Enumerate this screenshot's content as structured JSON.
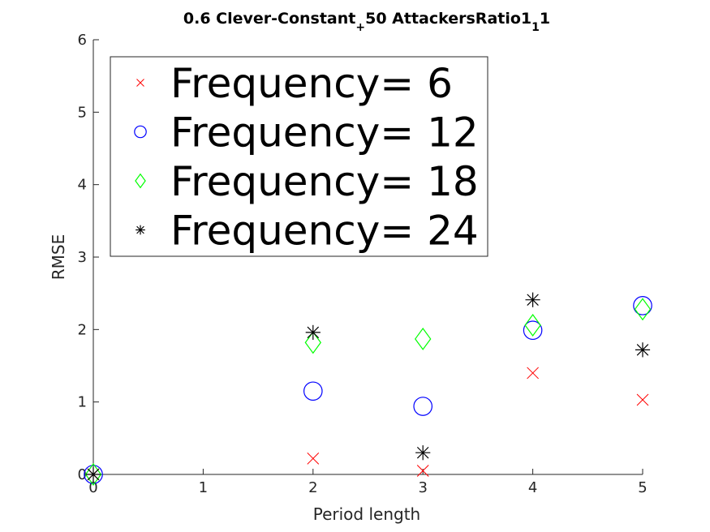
{
  "chart_data": {
    "type": "scatter",
    "title": {
      "part1": "0.6 Clever-Constant",
      "sub1": "+",
      "part2": "50 AttackersRatio1",
      "sub2": "1",
      "part3": "1"
    },
    "xlabel": "Period length",
    "ylabel": "RMSE",
    "xlim": [
      0,
      5
    ],
    "ylim": [
      0,
      6
    ],
    "xticks": [
      "0",
      "1",
      "2",
      "3",
      "4",
      "5"
    ],
    "yticks": [
      "0",
      "1",
      "2",
      "3",
      "4",
      "5",
      "6"
    ],
    "grid": false,
    "legend_position": "top-left",
    "series": [
      {
        "name": "Frequency= 6",
        "marker": "x",
        "color": "#ff0000",
        "points": [
          [
            0,
            0.0
          ],
          [
            2,
            0.22
          ],
          [
            3,
            0.05
          ],
          [
            4,
            1.4
          ],
          [
            5,
            1.03
          ]
        ]
      },
      {
        "name": "Frequency= 12",
        "marker": "circle",
        "color": "#0000ff",
        "points": [
          [
            0,
            0.0
          ],
          [
            2,
            1.15
          ],
          [
            3,
            0.94
          ],
          [
            4,
            1.99
          ],
          [
            5,
            2.33
          ]
        ]
      },
      {
        "name": "Frequency= 18",
        "marker": "diamond",
        "color": "#00ff00",
        "points": [
          [
            0,
            0.0
          ],
          [
            2,
            1.82
          ],
          [
            3,
            1.87
          ],
          [
            4,
            2.06
          ],
          [
            5,
            2.28
          ]
        ]
      },
      {
        "name": "Frequency= 24",
        "marker": "asterisk",
        "color": "#000000",
        "points": [
          [
            0,
            0.0
          ],
          [
            2,
            1.96
          ],
          [
            3,
            0.3
          ],
          [
            4,
            2.41
          ],
          [
            5,
            1.72
          ]
        ]
      }
    ]
  }
}
